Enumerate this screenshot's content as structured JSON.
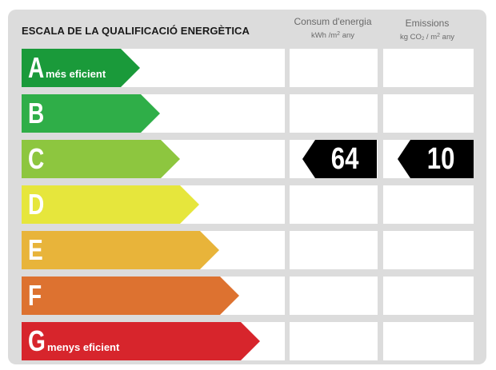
{
  "title": "ESCALA DE LA QUALIFICACIÓ ENERGÈTICA",
  "columns": {
    "consum": {
      "label": "Consum d'energia",
      "unit_pre": "kWh /m",
      "unit_sup": "2",
      "unit_post": " any"
    },
    "emissions": {
      "label": "Emissions",
      "unit_pre": "kg CO",
      "unit_sub": "2",
      "unit_mid": " / m",
      "unit_sup": "2",
      "unit_post": " any"
    }
  },
  "classes": [
    {
      "letter": "A",
      "desc": "més eficient",
      "color": "#1a9a3a"
    },
    {
      "letter": "B",
      "desc": "",
      "color": "#2fae48"
    },
    {
      "letter": "C",
      "desc": "",
      "color": "#8dc63f"
    },
    {
      "letter": "D",
      "desc": "",
      "color": "#e6e63c"
    },
    {
      "letter": "E",
      "desc": "",
      "color": "#e8b43a"
    },
    {
      "letter": "F",
      "desc": "",
      "color": "#dd7230"
    },
    {
      "letter": "G",
      "desc": "menys eficient",
      "color": "#d7252c"
    }
  ],
  "rating": {
    "class": "C",
    "consum_value": "64",
    "emissions_value": "10"
  }
}
